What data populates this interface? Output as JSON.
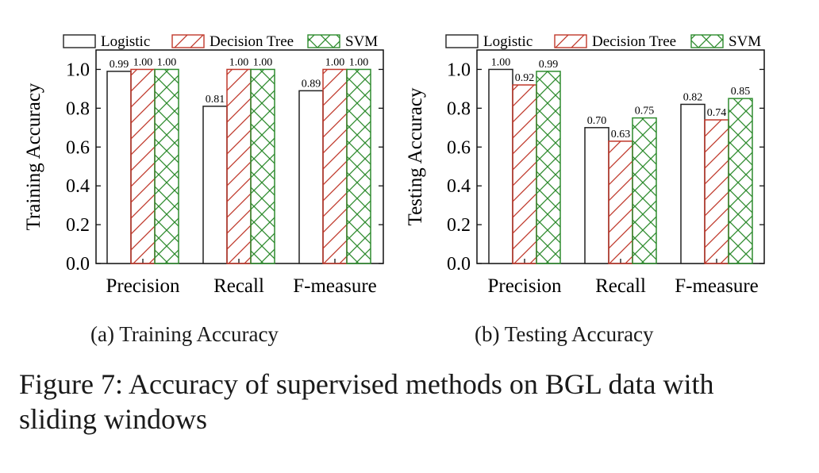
{
  "figure_caption": "Figure 7: Accuracy of supervised methods on BGL data with sliding windows",
  "colors": {
    "logistic": "#222222",
    "decision_tree": "#c0392b",
    "svm": "#2e8b2e"
  },
  "chart_data": [
    {
      "type": "bar",
      "subcaption": "(a) Training Accuracy",
      "ylabel": "Training Accuracy",
      "xlabel": "",
      "categories": [
        "Precision",
        "Recall",
        "F-measure"
      ],
      "ylim": [
        0,
        1.1
      ],
      "yticks": [
        "0.0",
        "0.2",
        "0.4",
        "0.6",
        "0.8",
        "1.0"
      ],
      "legend": "top",
      "series": [
        {
          "name": "Logistic",
          "values": [
            0.99,
            0.81,
            0.89
          ],
          "labels": [
            "0.99",
            "0.81",
            "0.89"
          ]
        },
        {
          "name": "Decision Tree",
          "values": [
            1.0,
            1.0,
            1.0
          ],
          "labels": [
            "1.00",
            "1.00",
            "1.00"
          ]
        },
        {
          "name": "SVM",
          "values": [
            1.0,
            1.0,
            1.0
          ],
          "labels": [
            "1.00",
            "1.00",
            "1.00"
          ]
        }
      ]
    },
    {
      "type": "bar",
      "subcaption": "(b) Testing Accuracy",
      "ylabel": "Testing Accuracy",
      "xlabel": "",
      "categories": [
        "Precision",
        "Recall",
        "F-measure"
      ],
      "ylim": [
        0,
        1.1
      ],
      "yticks": [
        "0.0",
        "0.2",
        "0.4",
        "0.6",
        "0.8",
        "1.0"
      ],
      "legend": "top",
      "series": [
        {
          "name": "Logistic",
          "values": [
            1.0,
            0.7,
            0.82
          ],
          "labels": [
            "1.00",
            "0.70",
            "0.82"
          ]
        },
        {
          "name": "Decision Tree",
          "values": [
            0.92,
            0.63,
            0.74
          ],
          "labels": [
            "0.92",
            "0.63",
            "0.74"
          ]
        },
        {
          "name": "SVM",
          "values": [
            0.99,
            0.75,
            0.85
          ],
          "labels": [
            "0.99",
            "0.75",
            "0.85"
          ]
        }
      ]
    }
  ]
}
